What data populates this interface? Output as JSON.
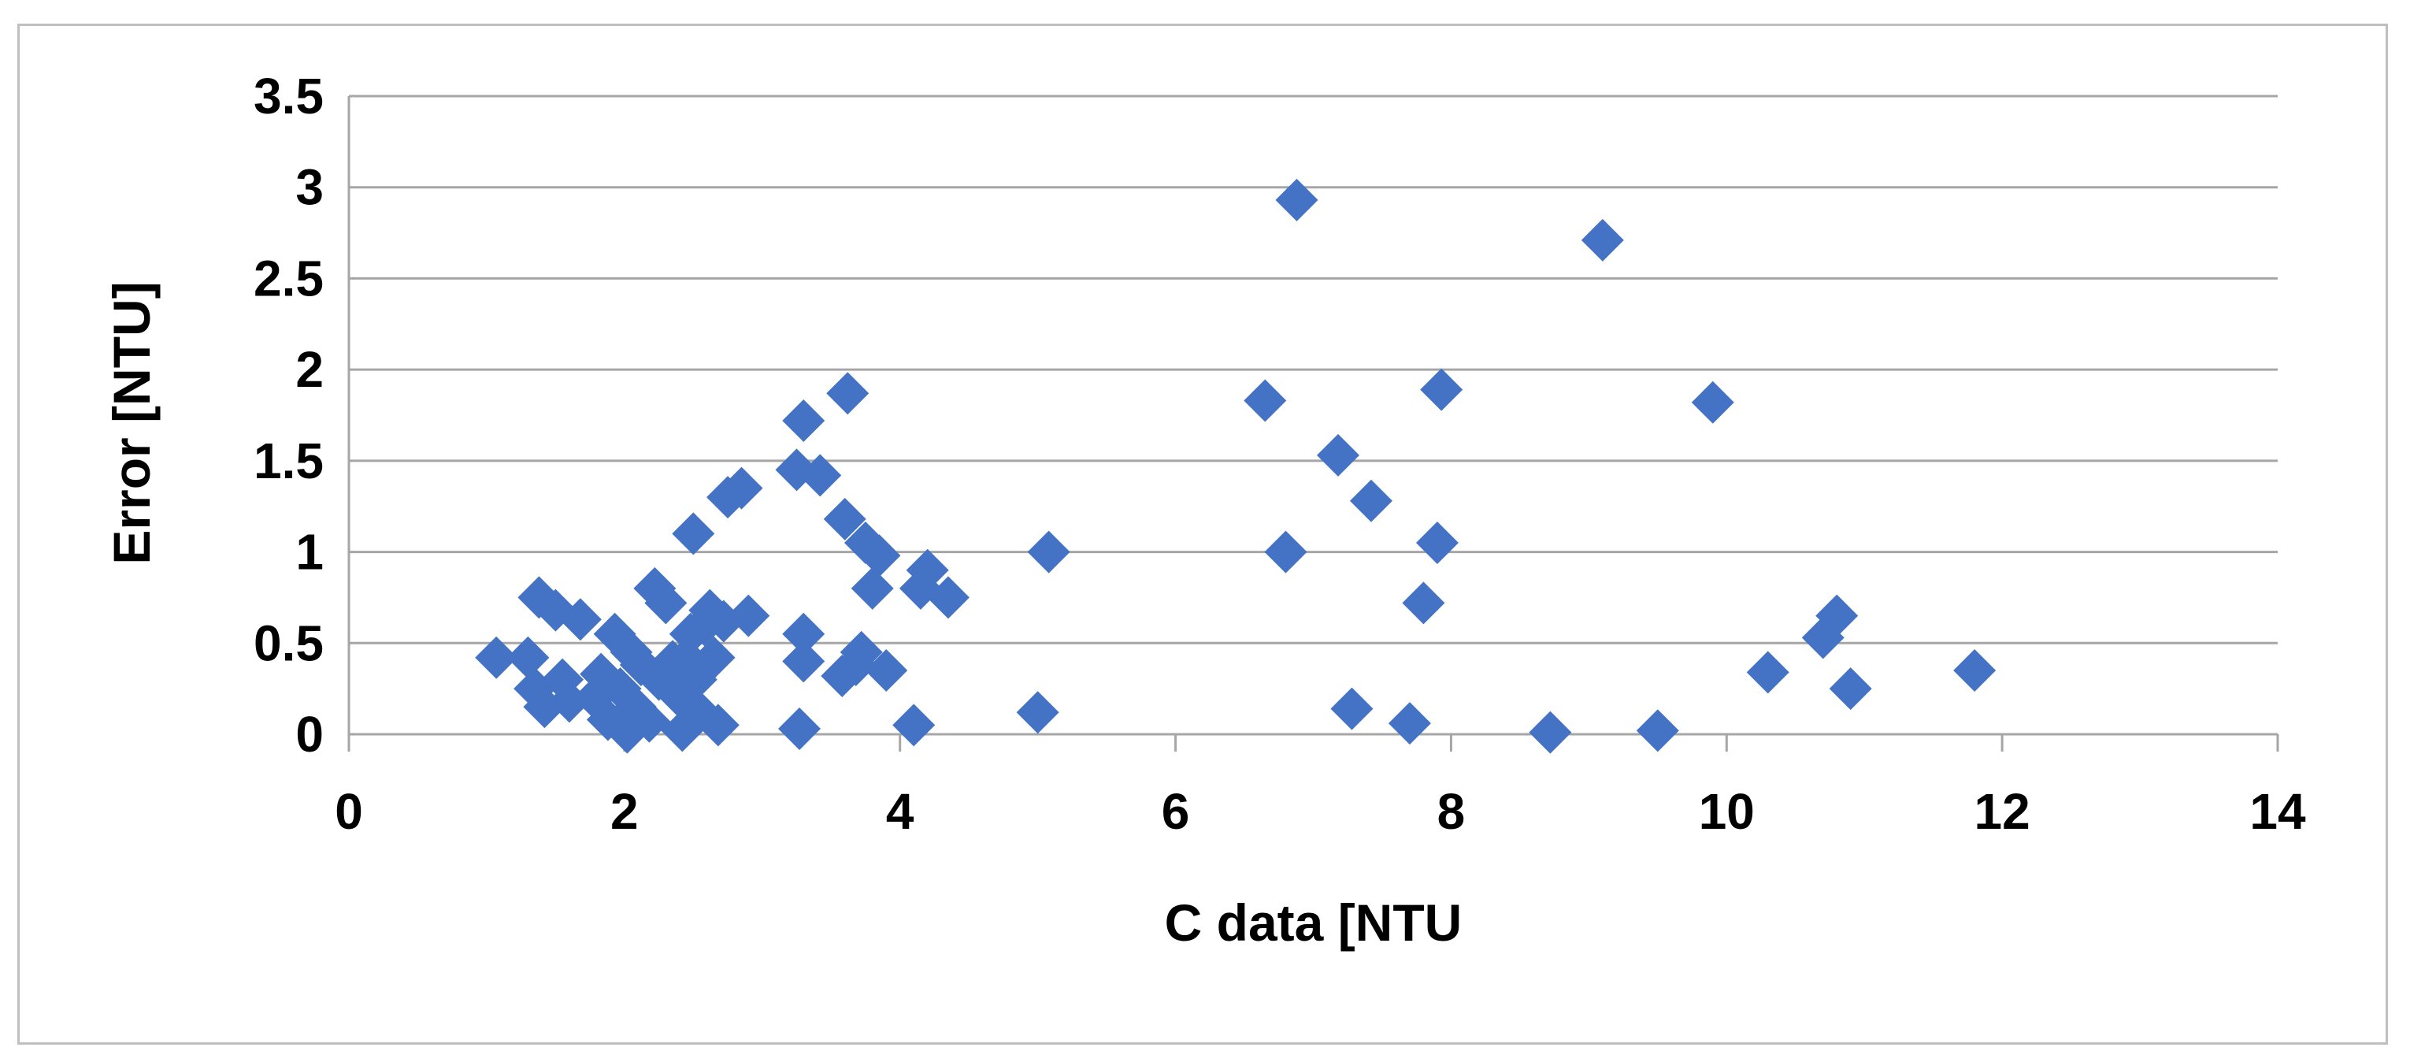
{
  "chart_data": {
    "type": "scatter",
    "title": "",
    "xlabel": "C data [NTU",
    "ylabel": "Error [NTU]",
    "xlim": [
      0,
      14
    ],
    "ylim": [
      0,
      3.5
    ],
    "xticks": [
      "0",
      "2",
      "4",
      "6",
      "8",
      "10",
      "12",
      "14"
    ],
    "yticks": [
      "0",
      "0.5",
      "1",
      "1.5",
      "2",
      "2.5",
      "3",
      "3.5"
    ],
    "grid": "horizontal",
    "legend": "none",
    "marker": "diamond",
    "colors": {
      "marker": "#4472C4",
      "grid": "#a6a6a6",
      "frame": "#bfbfbf"
    },
    "series": [
      {
        "points": [
          [
            1.07,
            0.42
          ],
          [
            1.3,
            0.42
          ],
          [
            1.35,
            0.25
          ],
          [
            1.38,
            0.75
          ],
          [
            1.42,
            0.15
          ],
          [
            1.5,
            0.68
          ],
          [
            1.55,
            0.3
          ],
          [
            1.6,
            0.18
          ],
          [
            1.68,
            0.63
          ],
          [
            1.78,
            0.2
          ],
          [
            1.83,
            0.33
          ],
          [
            1.88,
            0.08
          ],
          [
            1.93,
            0.55
          ],
          [
            1.97,
            0.25
          ],
          [
            2.02,
            0.01
          ],
          [
            2.05,
            0.45
          ],
          [
            2.08,
            0.15
          ],
          [
            2.12,
            0.38
          ],
          [
            2.18,
            0.07
          ],
          [
            2.22,
            0.8
          ],
          [
            2.25,
            0.3
          ],
          [
            2.3,
            0.72
          ],
          [
            2.35,
            0.4
          ],
          [
            2.38,
            0.22
          ],
          [
            2.42,
            0.02
          ],
          [
            2.45,
            0.42
          ],
          [
            2.48,
            0.55
          ],
          [
            2.5,
            1.1
          ],
          [
            2.52,
            0.3
          ],
          [
            2.55,
            0.12
          ],
          [
            2.58,
            0.6
          ],
          [
            2.62,
            0.68
          ],
          [
            2.65,
            0.42
          ],
          [
            2.68,
            0.05
          ],
          [
            2.72,
            0.62
          ],
          [
            2.75,
            1.3
          ],
          [
            2.85,
            1.35
          ],
          [
            2.9,
            0.65
          ],
          [
            3.25,
            1.45
          ],
          [
            3.27,
            0.03
          ],
          [
            3.3,
            1.72
          ],
          [
            3.3,
            0.55
          ],
          [
            3.3,
            0.4
          ],
          [
            3.42,
            1.42
          ],
          [
            3.58,
            0.32
          ],
          [
            3.6,
            1.18
          ],
          [
            3.62,
            1.87
          ],
          [
            3.68,
            0.38
          ],
          [
            3.72,
            0.45
          ],
          [
            3.75,
            1.05
          ],
          [
            3.8,
            0.8
          ],
          [
            3.85,
            0.98
          ],
          [
            3.9,
            0.35
          ],
          [
            4.1,
            0.05
          ],
          [
            4.15,
            0.8
          ],
          [
            4.2,
            0.9
          ],
          [
            4.35,
            0.75
          ],
          [
            5.0,
            0.12
          ],
          [
            5.08,
            1.0
          ],
          [
            6.65,
            1.83
          ],
          [
            6.8,
            1.0
          ],
          [
            6.88,
            2.93
          ],
          [
            7.18,
            1.53
          ],
          [
            7.28,
            0.14
          ],
          [
            7.42,
            1.28
          ],
          [
            7.7,
            0.06
          ],
          [
            7.8,
            0.72
          ],
          [
            7.9,
            1.05
          ],
          [
            7.93,
            1.89
          ],
          [
            8.72,
            0.01
          ],
          [
            9.1,
            2.71
          ],
          [
            9.5,
            0.02
          ],
          [
            9.9,
            1.82
          ],
          [
            10.3,
            0.34
          ],
          [
            10.7,
            0.53
          ],
          [
            10.8,
            0.65
          ],
          [
            10.9,
            0.25
          ],
          [
            11.8,
            0.35
          ]
        ]
      }
    ]
  }
}
